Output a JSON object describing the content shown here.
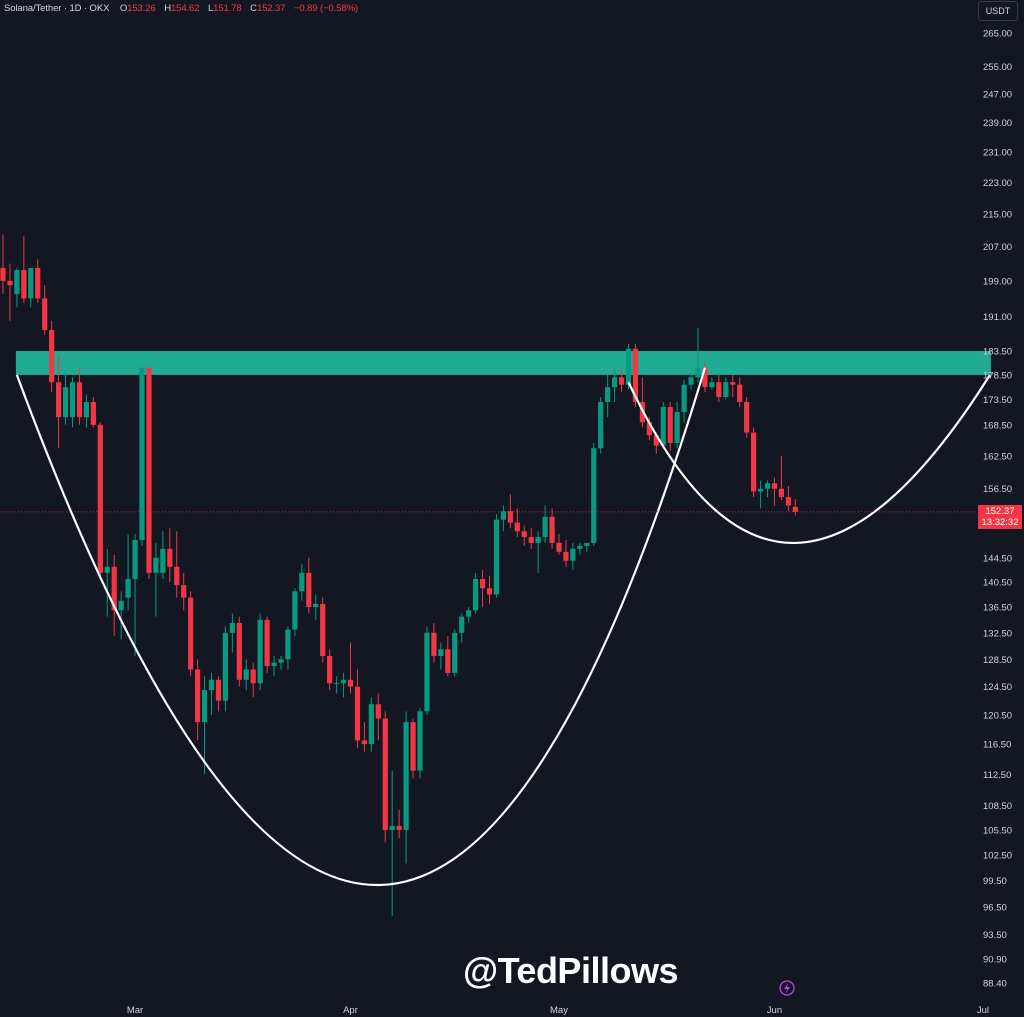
{
  "header": {
    "symbol": "Solana/Tether · 1D · OKX",
    "o_label": "O",
    "o_value": "153.26",
    "h_label": "H",
    "h_value": "154.62",
    "l_label": "L",
    "l_value": "151.78",
    "c_label": "C",
    "c_value": "152.37",
    "change": "−0.89 (−0.58%)"
  },
  "axis_unit": "USDT",
  "last_price": {
    "value": "152.37",
    "countdown": "13:32:32"
  },
  "watermark": "@TedPillows",
  "icons": {
    "bolt": "lightning-bolt-icon"
  },
  "colors": {
    "background": "#131722",
    "up": "#089981",
    "down": "#f23645",
    "zone": "#22ab94",
    "curve": "#ffffff",
    "axis_text": "#d1d4dc"
  },
  "chart_data": {
    "type": "candlestick",
    "title": "Solana/Tether · 1D · OKX",
    "y_axis": {
      "side": "right",
      "scale": "log",
      "range": [
        87,
        270
      ],
      "tick_labels": [
        "265.00",
        "255.00",
        "247.00",
        "239.00",
        "231.00",
        "223.00",
        "215.00",
        "207.00",
        "199.00",
        "191.00",
        "183.50",
        "178.50",
        "173.50",
        "168.50",
        "162.50",
        "156.50",
        "144.50",
        "140.50",
        "136.50",
        "132.50",
        "128.50",
        "124.50",
        "120.50",
        "116.50",
        "112.50",
        "108.50",
        "105.50",
        "102.50",
        "99.50",
        "96.50",
        "93.50",
        "90.90",
        "88.40"
      ]
    },
    "x_axis": {
      "tick_labels": [
        "Mar",
        "Apr",
        "May",
        "Jun",
        "Jul"
      ],
      "range": [
        "2025-02-10",
        "2025-07-01"
      ]
    },
    "candles": [
      {
        "date": "2025-02-10",
        "o": 202.0,
        "h": 210.0,
        "l": 196.0,
        "c": 199.0
      },
      {
        "date": "2025-02-11",
        "o": 199.0,
        "h": 203.0,
        "l": 190.0,
        "c": 198.0
      },
      {
        "date": "2025-02-12",
        "o": 196.0,
        "h": 202.0,
        "l": 193.0,
        "c": 201.5
      },
      {
        "date": "2025-02-13",
        "o": 201.5,
        "h": 209.5,
        "l": 194.0,
        "c": 195.0
      },
      {
        "date": "2025-02-14",
        "o": 195.0,
        "h": 202.0,
        "l": 193.0,
        "c": 202.0
      },
      {
        "date": "2025-02-15",
        "o": 202.0,
        "h": 204.0,
        "l": 194.0,
        "c": 195.0
      },
      {
        "date": "2025-02-16",
        "o": 195.0,
        "h": 198.0,
        "l": 187.0,
        "c": 188.0
      },
      {
        "date": "2025-02-17",
        "o": 188.0,
        "h": 190.0,
        "l": 175.0,
        "c": 177.0
      },
      {
        "date": "2025-02-18",
        "o": 177.0,
        "h": 182.5,
        "l": 164.0,
        "c": 170.0
      },
      {
        "date": "2025-02-19",
        "o": 170.0,
        "h": 179.0,
        "l": 168.5,
        "c": 176.0
      },
      {
        "date": "2025-02-20",
        "o": 170.0,
        "h": 178.0,
        "l": 168.0,
        "c": 177.0
      },
      {
        "date": "2025-02-21",
        "o": 177.0,
        "h": 180.0,
        "l": 168.5,
        "c": 170.0
      },
      {
        "date": "2025-02-22",
        "o": 170.0,
        "h": 174.5,
        "l": 168.0,
        "c": 173.0
      },
      {
        "date": "2025-02-23",
        "o": 173.0,
        "h": 174.0,
        "l": 168.0,
        "c": 168.5
      },
      {
        "date": "2025-02-24",
        "o": 168.5,
        "h": 169.0,
        "l": 141.0,
        "c": 142.0
      },
      {
        "date": "2025-02-25",
        "o": 142.0,
        "h": 146.0,
        "l": 135.0,
        "c": 143.0
      },
      {
        "date": "2025-02-26",
        "o": 143.0,
        "h": 145.0,
        "l": 132.0,
        "c": 136.0
      },
      {
        "date": "2025-02-27",
        "o": 136.0,
        "h": 139.0,
        "l": 131.5,
        "c": 137.5
      },
      {
        "date": "2025-02-28",
        "o": 138.0,
        "h": 148.5,
        "l": 136.0,
        "c": 141.0
      },
      {
        "date": "2025-03-01",
        "o": 141.0,
        "h": 148.5,
        "l": 129.0,
        "c": 147.5
      },
      {
        "date": "2025-03-02",
        "o": 147.5,
        "h": 180.0,
        "l": 146.5,
        "c": 180.0
      },
      {
        "date": "2025-03-03",
        "o": 180.0,
        "h": 180.0,
        "l": 141.0,
        "c": 142.0
      },
      {
        "date": "2025-03-04",
        "o": 142.0,
        "h": 147.0,
        "l": 135.0,
        "c": 144.5
      },
      {
        "date": "2025-03-05",
        "o": 142.0,
        "h": 149.0,
        "l": 141.0,
        "c": 146.0
      },
      {
        "date": "2025-03-06",
        "o": 146.0,
        "h": 149.5,
        "l": 140.5,
        "c": 143.0
      },
      {
        "date": "2025-03-07",
        "o": 143.0,
        "h": 149.0,
        "l": 138.0,
        "c": 140.0
      },
      {
        "date": "2025-03-08",
        "o": 140.0,
        "h": 142.0,
        "l": 136.0,
        "c": 138.0
      },
      {
        "date": "2025-03-09",
        "o": 138.0,
        "h": 139.0,
        "l": 126.0,
        "c": 127.0
      },
      {
        "date": "2025-03-10",
        "o": 127.0,
        "h": 128.5,
        "l": 117.0,
        "c": 119.5
      },
      {
        "date": "2025-03-11",
        "o": 119.5,
        "h": 126.0,
        "l": 112.5,
        "c": 124.0
      },
      {
        "date": "2025-03-12",
        "o": 124.0,
        "h": 126.5,
        "l": 120.5,
        "c": 125.5
      },
      {
        "date": "2025-03-13",
        "o": 125.5,
        "h": 126.0,
        "l": 121.0,
        "c": 122.5
      },
      {
        "date": "2025-03-14",
        "o": 122.5,
        "h": 133.5,
        "l": 121.0,
        "c": 132.5
      },
      {
        "date": "2025-03-15",
        "o": 132.5,
        "h": 135.5,
        "l": 129.5,
        "c": 134.0
      },
      {
        "date": "2025-03-16",
        "o": 134.0,
        "h": 135.0,
        "l": 124.5,
        "c": 125.5
      },
      {
        "date": "2025-03-17",
        "o": 125.5,
        "h": 128.5,
        "l": 124.0,
        "c": 127.0
      },
      {
        "date": "2025-03-18",
        "o": 127.0,
        "h": 128.0,
        "l": 123.0,
        "c": 125.0
      },
      {
        "date": "2025-03-19",
        "o": 125.0,
        "h": 135.5,
        "l": 124.0,
        "c": 134.5
      },
      {
        "date": "2025-03-20",
        "o": 134.5,
        "h": 135.0,
        "l": 126.5,
        "c": 127.5
      },
      {
        "date": "2025-03-21",
        "o": 127.5,
        "h": 129.0,
        "l": 126.0,
        "c": 128.0
      },
      {
        "date": "2025-03-22",
        "o": 128.0,
        "h": 129.0,
        "l": 127.0,
        "c": 128.5
      },
      {
        "date": "2025-03-23",
        "o": 128.5,
        "h": 133.5,
        "l": 127.0,
        "c": 133.0
      },
      {
        "date": "2025-03-24",
        "o": 133.0,
        "h": 139.5,
        "l": 132.0,
        "c": 139.0
      },
      {
        "date": "2025-03-25",
        "o": 139.0,
        "h": 143.5,
        "l": 137.5,
        "c": 142.0
      },
      {
        "date": "2025-03-26",
        "o": 142.0,
        "h": 144.5,
        "l": 135.5,
        "c": 136.5
      },
      {
        "date": "2025-03-27",
        "o": 136.5,
        "h": 138.5,
        "l": 134.5,
        "c": 137.0
      },
      {
        "date": "2025-03-28",
        "o": 137.0,
        "h": 138.0,
        "l": 128.0,
        "c": 129.0
      },
      {
        "date": "2025-03-29",
        "o": 129.0,
        "h": 130.0,
        "l": 124.0,
        "c": 125.0
      },
      {
        "date": "2025-03-30",
        "o": 125.0,
        "h": 126.0,
        "l": 123.5,
        "c": 125.0
      },
      {
        "date": "2025-03-31",
        "o": 125.0,
        "h": 126.5,
        "l": 123.0,
        "c": 125.5
      },
      {
        "date": "2025-04-01",
        "o": 125.5,
        "h": 131.0,
        "l": 123.5,
        "c": 124.5
      },
      {
        "date": "2025-04-02",
        "o": 124.5,
        "h": 127.0,
        "l": 116.0,
        "c": 117.0
      },
      {
        "date": "2025-04-03",
        "o": 117.0,
        "h": 119.5,
        "l": 115.5,
        "c": 116.5
      },
      {
        "date": "2025-04-04",
        "o": 116.5,
        "h": 123.0,
        "l": 115.5,
        "c": 122.0
      },
      {
        "date": "2025-04-05",
        "o": 122.0,
        "h": 123.5,
        "l": 117.0,
        "c": 120.0
      },
      {
        "date": "2025-04-06",
        "o": 120.0,
        "h": 121.0,
        "l": 104.0,
        "c": 105.5
      },
      {
        "date": "2025-04-07",
        "o": 105.5,
        "h": 113.0,
        "l": 95.5,
        "c": 106.0
      },
      {
        "date": "2025-04-08",
        "o": 106.0,
        "h": 108.0,
        "l": 104.5,
        "c": 105.5
      },
      {
        "date": "2025-04-09",
        "o": 105.5,
        "h": 121.0,
        "l": 101.5,
        "c": 119.5
      },
      {
        "date": "2025-04-10",
        "o": 119.5,
        "h": 120.0,
        "l": 112.0,
        "c": 113.0
      },
      {
        "date": "2025-04-11",
        "o": 113.0,
        "h": 121.5,
        "l": 112.0,
        "c": 121.0
      },
      {
        "date": "2025-04-12",
        "o": 121.0,
        "h": 133.5,
        "l": 120.5,
        "c": 132.5
      },
      {
        "date": "2025-04-13",
        "o": 132.5,
        "h": 134.0,
        "l": 128.0,
        "c": 129.0
      },
      {
        "date": "2025-04-14",
        "o": 129.0,
        "h": 131.0,
        "l": 127.0,
        "c": 130.0
      },
      {
        "date": "2025-04-15",
        "o": 130.0,
        "h": 132.0,
        "l": 126.0,
        "c": 126.5
      },
      {
        "date": "2025-04-16",
        "o": 126.5,
        "h": 133.0,
        "l": 126.0,
        "c": 132.5
      },
      {
        "date": "2025-04-17",
        "o": 132.5,
        "h": 135.5,
        "l": 131.0,
        "c": 135.0
      },
      {
        "date": "2025-04-18",
        "o": 135.0,
        "h": 136.5,
        "l": 134.0,
        "c": 136.0
      },
      {
        "date": "2025-04-19",
        "o": 136.0,
        "h": 142.0,
        "l": 135.5,
        "c": 141.0
      },
      {
        "date": "2025-04-20",
        "o": 141.0,
        "h": 142.5,
        "l": 136.5,
        "c": 139.5
      },
      {
        "date": "2025-04-21",
        "o": 139.5,
        "h": 141.5,
        "l": 137.0,
        "c": 138.5
      },
      {
        "date": "2025-04-22",
        "o": 138.5,
        "h": 152.0,
        "l": 138.0,
        "c": 151.0
      },
      {
        "date": "2025-04-23",
        "o": 151.0,
        "h": 153.5,
        "l": 149.0,
        "c": 152.5
      },
      {
        "date": "2025-04-24",
        "o": 152.5,
        "h": 155.5,
        "l": 149.5,
        "c": 150.5
      },
      {
        "date": "2025-04-25",
        "o": 150.5,
        "h": 153.0,
        "l": 148.0,
        "c": 149.0
      },
      {
        "date": "2025-04-26",
        "o": 149.0,
        "h": 150.0,
        "l": 146.5,
        "c": 148.0
      },
      {
        "date": "2025-04-27",
        "o": 148.0,
        "h": 149.5,
        "l": 146.0,
        "c": 147.0
      },
      {
        "date": "2025-04-28",
        "o": 147.0,
        "h": 149.0,
        "l": 142.0,
        "c": 148.0
      },
      {
        "date": "2025-04-29",
        "o": 148.0,
        "h": 153.5,
        "l": 147.0,
        "c": 151.5
      },
      {
        "date": "2025-04-30",
        "o": 151.5,
        "h": 153.0,
        "l": 146.0,
        "c": 147.0
      },
      {
        "date": "2025-05-01",
        "o": 147.0,
        "h": 148.5,
        "l": 145.0,
        "c": 145.5
      },
      {
        "date": "2025-05-02",
        "o": 145.5,
        "h": 147.5,
        "l": 143.0,
        "c": 144.0
      },
      {
        "date": "2025-05-03",
        "o": 144.0,
        "h": 147.0,
        "l": 142.5,
        "c": 146.0
      },
      {
        "date": "2025-05-04",
        "o": 146.0,
        "h": 147.0,
        "l": 145.0,
        "c": 146.5
      },
      {
        "date": "2025-05-05",
        "o": 146.5,
        "h": 147.0,
        "l": 145.5,
        "c": 147.0
      },
      {
        "date": "2025-05-06",
        "o": 147.0,
        "h": 165.0,
        "l": 146.5,
        "c": 164.0
      },
      {
        "date": "2025-05-07",
        "o": 164.0,
        "h": 174.0,
        "l": 163.0,
        "c": 173.0
      },
      {
        "date": "2025-05-08",
        "o": 173.0,
        "h": 178.5,
        "l": 170.0,
        "c": 176.0
      },
      {
        "date": "2025-05-09",
        "o": 176.0,
        "h": 180.0,
        "l": 173.0,
        "c": 178.0
      },
      {
        "date": "2025-05-10",
        "o": 178.0,
        "h": 179.5,
        "l": 175.0,
        "c": 176.5
      },
      {
        "date": "2025-05-11",
        "o": 176.5,
        "h": 185.0,
        "l": 175.5,
        "c": 184.0
      },
      {
        "date": "2025-05-12",
        "o": 184.0,
        "h": 185.0,
        "l": 172.0,
        "c": 173.0
      },
      {
        "date": "2025-05-13",
        "o": 173.0,
        "h": 178.0,
        "l": 168.0,
        "c": 169.0
      },
      {
        "date": "2025-05-14",
        "o": 169.0,
        "h": 170.0,
        "l": 165.5,
        "c": 166.5
      },
      {
        "date": "2025-05-15",
        "o": 166.5,
        "h": 167.0,
        "l": 163.0,
        "c": 164.5
      },
      {
        "date": "2025-05-16",
        "o": 164.5,
        "h": 173.0,
        "l": 164.0,
        "c": 172.0
      },
      {
        "date": "2025-05-17",
        "o": 172.0,
        "h": 173.0,
        "l": 163.5,
        "c": 165.0
      },
      {
        "date": "2025-05-18",
        "o": 165.0,
        "h": 173.0,
        "l": 164.0,
        "c": 171.0
      },
      {
        "date": "2025-05-19",
        "o": 171.0,
        "h": 177.5,
        "l": 169.0,
        "c": 176.5
      },
      {
        "date": "2025-05-20",
        "o": 176.5,
        "h": 179.0,
        "l": 175.5,
        "c": 178.0
      },
      {
        "date": "2025-05-21",
        "o": 178.0,
        "h": 188.5,
        "l": 177.0,
        "c": 180.0
      },
      {
        "date": "2025-05-22",
        "o": 180.0,
        "h": 181.0,
        "l": 175.0,
        "c": 176.0
      },
      {
        "date": "2025-05-23",
        "o": 176.0,
        "h": 178.0,
        "l": 175.5,
        "c": 177.0
      },
      {
        "date": "2025-05-24",
        "o": 177.0,
        "h": 178.5,
        "l": 173.0,
        "c": 174.0
      },
      {
        "date": "2025-05-25",
        "o": 174.0,
        "h": 178.0,
        "l": 173.5,
        "c": 177.0
      },
      {
        "date": "2025-05-26",
        "o": 177.0,
        "h": 178.5,
        "l": 174.0,
        "c": 176.5
      },
      {
        "date": "2025-05-27",
        "o": 176.5,
        "h": 178.0,
        "l": 172.0,
        "c": 173.0
      },
      {
        "date": "2025-05-28",
        "o": 173.0,
        "h": 174.0,
        "l": 166.0,
        "c": 167.0
      },
      {
        "date": "2025-05-29",
        "o": 167.0,
        "h": 168.0,
        "l": 155.0,
        "c": 156.0
      },
      {
        "date": "2025-05-30",
        "o": 156.0,
        "h": 158.0,
        "l": 153.0,
        "c": 156.5
      },
      {
        "date": "2025-05-31",
        "o": 156.5,
        "h": 158.0,
        "l": 155.0,
        "c": 157.5
      },
      {
        "date": "2025-06-01",
        "o": 157.5,
        "h": 158.5,
        "l": 153.5,
        "c": 156.5
      },
      {
        "date": "2025-06-02",
        "o": 156.5,
        "h": 162.5,
        "l": 154.5,
        "c": 155.0
      },
      {
        "date": "2025-06-03",
        "o": 155.0,
        "h": 157.0,
        "l": 152.5,
        "c": 153.5
      },
      {
        "date": "2025-06-04",
        "o": 153.26,
        "h": 154.62,
        "l": 151.78,
        "c": 152.37
      }
    ],
    "resistance_zone": {
      "low": 178.5,
      "high": 183.5,
      "start": "2025-02-12",
      "end": "2025-07-02"
    },
    "annotations": [
      {
        "type": "cup-curve",
        "left": {
          "date": "2025-02-12",
          "price": 178.5
        },
        "bottom": {
          "date": "2025-04-05",
          "price": 99.0
        },
        "right": {
          "date": "2025-05-22",
          "price": 180.0
        }
      },
      {
        "type": "handle-curve",
        "left": {
          "date": "2025-05-11",
          "price": 177.0
        },
        "bottom": {
          "date": "2025-06-04",
          "price": 147.0
        },
        "right": {
          "date": "2025-07-02",
          "price": 178.5
        }
      }
    ],
    "last_price_line": 152.37,
    "grid": false
  }
}
